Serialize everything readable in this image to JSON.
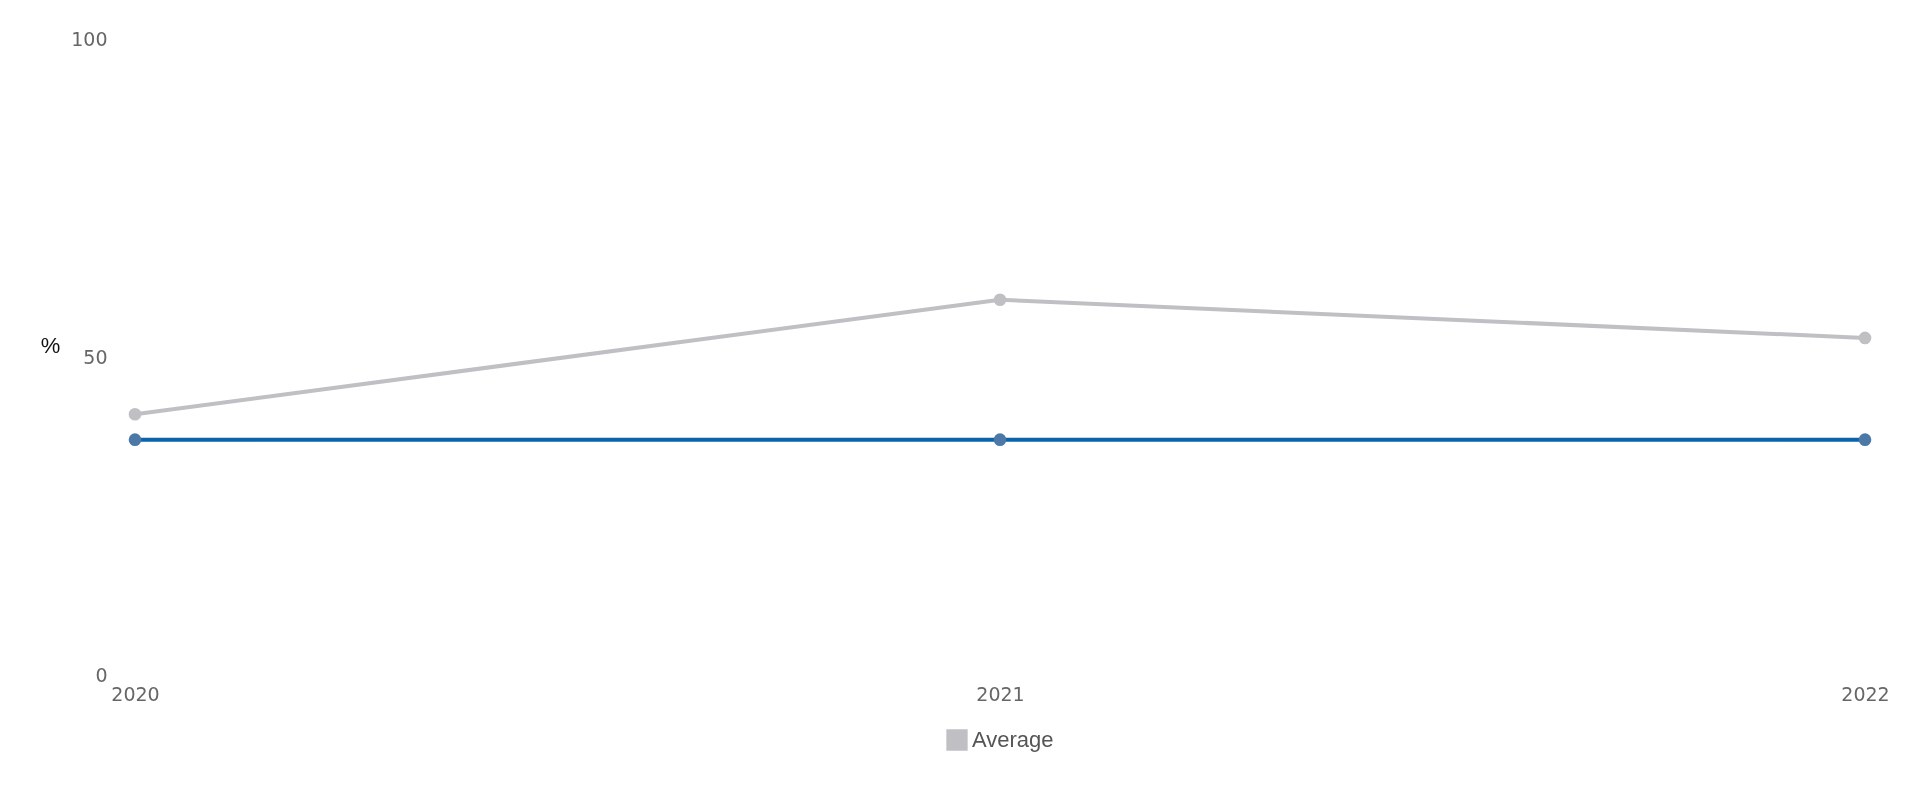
{
  "chart_data": {
    "type": "line",
    "categories": [
      "2020",
      "2021",
      "2022"
    ],
    "series": [
      {
        "color": "#0a64a8",
        "values": [
          37,
          37,
          37
        ]
      },
      {
        "name": "Average",
        "color": "#c0c0c4",
        "values": [
          41,
          59,
          53
        ]
      }
    ],
    "ylabel": "%",
    "ylim": [
      0,
      100
    ],
    "yticks": [
      0,
      50,
      100
    ],
    "grid": false,
    "legend": "bottom",
    "marker": "circle",
    "line_style": "solid"
  }
}
